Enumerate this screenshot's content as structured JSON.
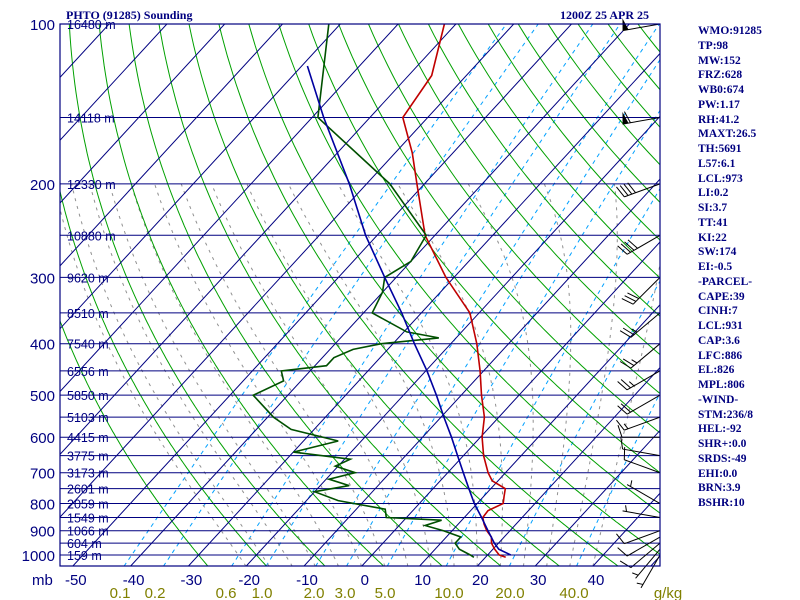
{
  "header": {
    "station": "PHTO (91285) Sounding",
    "time": "1200Z 25 APR 25"
  },
  "indices": [
    "WMO:91285",
    "TP:98",
    "MW:152",
    "FRZ:628",
    "WB0:674",
    "PW:1.17",
    "RH:41.2",
    "MAXT:26.5",
    "TH:5691",
    "L57:6.1",
    "LCL:973",
    "LI:0.2",
    "SI:3.7",
    "TT:41",
    "KI:22",
    "SW:174",
    "EI:-0.5",
    "-PARCEL-",
    "CAPE:39",
    "CINH:7",
    "LCL:931",
    "CAP:3.6",
    "LFC:886",
    "EL:826",
    "MPL:806",
    "-WIND-",
    "STM:236/8",
    "HEL:-92",
    "SHR+:0.0",
    "SRDS:-49",
    "EHI:0.0",
    "BRN:3.9",
    "BSHR:10"
  ],
  "colors": {
    "frame": "#000080",
    "isobar": "#000080",
    "isotherm": "#000080",
    "dry_adiabat": "#00a000",
    "moist_adiabat": "#909090",
    "mixing_ratio": "#00a0ff",
    "temperature": "#c00000",
    "dewpoint": "#005000",
    "parcel": "#0000a0",
    "wind": "#000000",
    "mixing_labels": "#808000"
  },
  "chart_data": {
    "type": "skew-t",
    "xlabel": "mb",
    "pressure_ticks": [
      100,
      200,
      300,
      400,
      500,
      600,
      700,
      800,
      900,
      1000
    ],
    "temperature_ticks": [
      -50,
      -40,
      -30,
      -20,
      -10,
      0,
      10,
      20,
      30,
      40
    ],
    "mixing_ratio_labels": [
      "0.1",
      "0.2",
      "0.6",
      "1.0",
      "2.0",
      "3.0",
      "5.0",
      "10.0",
      "20.0",
      "40.0"
    ],
    "mixing_ratio_values": [
      0.1,
      0.2,
      0.6,
      1.0,
      2.0,
      3.0,
      5.0,
      10.0,
      20.0,
      40.0
    ],
    "mixing_units": "g/kg",
    "height_labels": [
      {
        "p": 100,
        "label": "16480 m"
      },
      {
        "p": 150,
        "label": "14118 m"
      },
      {
        "p": 200,
        "label": "12330 m"
      },
      {
        "p": 250,
        "label": "10880 m"
      },
      {
        "p": 300,
        "label": "9620 m"
      },
      {
        "p": 350,
        "label": "8510 m"
      },
      {
        "p": 400,
        "label": "7540 m"
      },
      {
        "p": 450,
        "label": "6556 m"
      },
      {
        "p": 500,
        "label": "5850 m"
      },
      {
        "p": 550,
        "label": "5103 m"
      },
      {
        "p": 600,
        "label": "4415 m"
      },
      {
        "p": 650,
        "label": "3775 m"
      },
      {
        "p": 700,
        "label": "3173 m"
      },
      {
        "p": 750,
        "label": "2601 m"
      },
      {
        "p": 800,
        "label": "2059 m"
      },
      {
        "p": 850,
        "label": "1549 m"
      },
      {
        "p": 900,
        "label": "1066 m"
      },
      {
        "p": 950,
        "label": "604 m"
      },
      {
        "p": 1000,
        "label": "159 m"
      }
    ],
    "temperature_profile": [
      {
        "p": 1010,
        "t": 23.5
      },
      {
        "p": 1000,
        "t": 22.0
      },
      {
        "p": 975,
        "t": 20.3
      },
      {
        "p": 950,
        "t": 18.8
      },
      {
        "p": 925,
        "t": 17.8
      },
      {
        "p": 900,
        "t": 16.0
      },
      {
        "p": 875,
        "t": 14.5
      },
      {
        "p": 850,
        "t": 13.2
      },
      {
        "p": 825,
        "t": 13.0
      },
      {
        "p": 800,
        "t": 14.5
      },
      {
        "p": 775,
        "t": 13.5
      },
      {
        "p": 750,
        "t": 12.5
      },
      {
        "p": 725,
        "t": 9.0
      },
      {
        "p": 700,
        "t": 7.0
      },
      {
        "p": 650,
        "t": 3.5
      },
      {
        "p": 600,
        "t": 0.3
      },
      {
        "p": 550,
        "t": -2.5
      },
      {
        "p": 500,
        "t": -6.5
      },
      {
        "p": 450,
        "t": -10.6
      },
      {
        "p": 400,
        "t": -15.5
      },
      {
        "p": 350,
        "t": -21.6
      },
      {
        "p": 300,
        "t": -31.4
      },
      {
        "p": 250,
        "t": -41.7
      },
      {
        "p": 200,
        "t": -51.3
      },
      {
        "p": 175,
        "t": -57.0
      },
      {
        "p": 150,
        "t": -64.3
      },
      {
        "p": 125,
        "t": -66.0
      },
      {
        "p": 100,
        "t": -72.0
      }
    ],
    "dewpoint_profile": [
      {
        "p": 1010,
        "t": 18.0
      },
      {
        "p": 1000,
        "t": 17.0
      },
      {
        "p": 975,
        "t": 14.2
      },
      {
        "p": 950,
        "t": 12.5
      },
      {
        "p": 925,
        "t": 12.5
      },
      {
        "p": 900,
        "t": 8.5
      },
      {
        "p": 880,
        "t": 4.5
      },
      {
        "p": 860,
        "t": 6.5
      },
      {
        "p": 850,
        "t": -3.5
      },
      {
        "p": 820,
        "t": -5.0
      },
      {
        "p": 790,
        "t": -14.5
      },
      {
        "p": 760,
        "t": -20.0
      },
      {
        "p": 740,
        "t": -15.0
      },
      {
        "p": 720,
        "t": -19.5
      },
      {
        "p": 700,
        "t": -16.0
      },
      {
        "p": 680,
        "t": -20.5
      },
      {
        "p": 660,
        "t": -19.0
      },
      {
        "p": 640,
        "t": -30.0
      },
      {
        "p": 610,
        "t": -24.0
      },
      {
        "p": 580,
        "t": -34.0
      },
      {
        "p": 550,
        "t": -39.0
      },
      {
        "p": 500,
        "t": -46.0
      },
      {
        "p": 470,
        "t": -43.0
      },
      {
        "p": 450,
        "t": -45.0
      },
      {
        "p": 440,
        "t": -38.0
      },
      {
        "p": 425,
        "t": -38.0
      },
      {
        "p": 410,
        "t": -36.0
      },
      {
        "p": 400,
        "t": -32.0
      },
      {
        "p": 390,
        "t": -23.0
      },
      {
        "p": 380,
        "t": -29.5
      },
      {
        "p": 350,
        "t": -38.5
      },
      {
        "p": 320,
        "t": -40.0
      },
      {
        "p": 300,
        "t": -42.0
      },
      {
        "p": 280,
        "t": -40.0
      },
      {
        "p": 250,
        "t": -41.5
      },
      {
        "p": 200,
        "t": -56.0
      },
      {
        "p": 150,
        "t": -79.0
      },
      {
        "p": 100,
        "t": -92.0
      }
    ],
    "parcel_profile": [
      {
        "p": 1000,
        "t": 24.0
      },
      {
        "p": 975,
        "t": 21.0
      },
      {
        "p": 950,
        "t": 19.3
      },
      {
        "p": 900,
        "t": 16.2
      },
      {
        "p": 850,
        "t": 13.0
      },
      {
        "p": 800,
        "t": 9.5
      },
      {
        "p": 750,
        "t": 6.2
      },
      {
        "p": 700,
        "t": 2.7
      },
      {
        "p": 650,
        "t": -1.0
      },
      {
        "p": 600,
        "t": -5.0
      },
      {
        "p": 550,
        "t": -9.5
      },
      {
        "p": 500,
        "t": -14.3
      },
      {
        "p": 450,
        "t": -19.8
      },
      {
        "p": 400,
        "t": -26.3
      },
      {
        "p": 350,
        "t": -33.4
      },
      {
        "p": 300,
        "t": -42.0
      },
      {
        "p": 250,
        "t": -52.0
      },
      {
        "p": 200,
        "t": -63.0
      },
      {
        "p": 150,
        "t": -78.0
      },
      {
        "p": 120,
        "t": -89.0
      }
    ],
    "winds": [
      {
        "p": 1000,
        "dir": 210,
        "spd": 5
      },
      {
        "p": 975,
        "dir": 220,
        "spd": 5
      },
      {
        "p": 950,
        "dir": 230,
        "spd": 10
      },
      {
        "p": 925,
        "dir": 240,
        "spd": 10
      },
      {
        "p": 900,
        "dir": 250,
        "spd": 10
      },
      {
        "p": 850,
        "dir": 280,
        "spd": 5
      },
      {
        "p": 800,
        "dir": 300,
        "spd": 5
      },
      {
        "p": 700,
        "dir": 290,
        "spd": 10
      },
      {
        "p": 650,
        "dir": 280,
        "spd": 10
      },
      {
        "p": 600,
        "dir": 270,
        "spd": 10
      },
      {
        "p": 550,
        "dir": 250,
        "spd": 15
      },
      {
        "p": 500,
        "dir": 240,
        "spd": 20
      },
      {
        "p": 450,
        "dir": 240,
        "spd": 25
      },
      {
        "p": 400,
        "dir": 230,
        "spd": 25
      },
      {
        "p": 350,
        "dir": 230,
        "spd": 25
      },
      {
        "p": 300,
        "dir": 225,
        "spd": 30
      },
      {
        "p": 250,
        "dir": 240,
        "spd": 40
      },
      {
        "p": 200,
        "dir": 250,
        "spd": 40
      },
      {
        "p": 150,
        "dir": 260,
        "spd": 60
      },
      {
        "p": 100,
        "dir": 260,
        "spd": 50
      }
    ]
  }
}
